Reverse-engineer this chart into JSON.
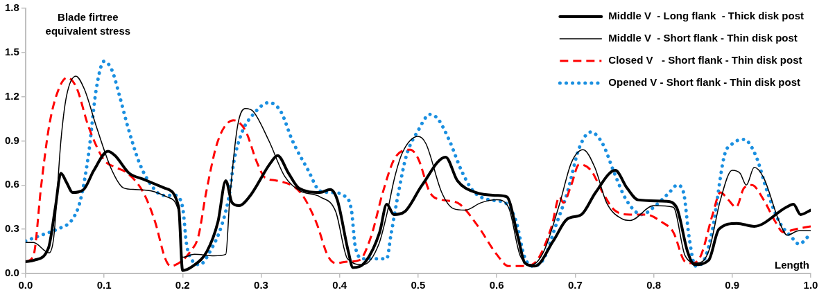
{
  "chart_data": {
    "type": "line",
    "ylabel": "Blade firtree equivalent stress",
    "xlabel": "Length",
    "xlim": [
      0,
      1
    ],
    "xticks": [
      {
        "value": 0,
        "label": "0.0"
      },
      {
        "value": 0.1,
        "label": "0.1"
      },
      {
        "value": 0.2,
        "label": "0.2"
      },
      {
        "value": 0.3,
        "label": "0.3"
      },
      {
        "value": 0.4,
        "label": "0.4"
      },
      {
        "value": 0.5,
        "label": "0.5"
      },
      {
        "value": 0.6,
        "label": "0.6"
      },
      {
        "value": 0.7,
        "label": "0.7"
      },
      {
        "value": 0.8,
        "label": "0.8"
      },
      {
        "value": 0.9,
        "label": "0.9"
      },
      {
        "value": 1,
        "label": "1.0"
      }
    ],
    "ylim": [
      0,
      1.8
    ],
    "yticks": [
      {
        "value": 0,
        "label": "0.0"
      },
      {
        "value": 0.3,
        "label": "0.3"
      },
      {
        "value": 0.6,
        "label": "0.6"
      },
      {
        "value": 0.9,
        "label": "0.9"
      },
      {
        "value": 1.2,
        "label": "1.2"
      },
      {
        "value": 1.5,
        "label": "1.5"
      },
      {
        "value": 1.8,
        "label": "1.8"
      }
    ],
    "grid": false,
    "legend": "top right",
    "marker": "none",
    "series": [
      {
        "name": "Middle V  - Long flank  - Thick disk post",
        "color": "#000000",
        "line_style": "solid",
        "x": [
          0,
          0.011,
          0.029,
          0.038,
          0.045,
          0.052,
          0.06,
          0.074,
          0.087,
          0.105,
          0.114,
          0.132,
          0.15,
          0.177,
          0.195,
          0.2,
          0.213,
          0.231,
          0.245,
          0.255,
          0.263,
          0.272,
          0.285,
          0.312,
          0.321,
          0.335,
          0.348,
          0.375,
          0.388,
          0.397,
          0.411,
          0.417,
          0.433,
          0.451,
          0.46,
          0.469,
          0.483,
          0.505,
          0.535,
          0.55,
          0.573,
          0.6,
          0.613,
          0.627,
          0.636,
          0.649,
          0.672,
          0.69,
          0.708,
          0.726,
          0.751,
          0.766,
          0.78,
          0.816,
          0.829,
          0.843,
          0.852,
          0.87,
          0.883,
          0.906,
          0.928,
          0.969,
          0.978,
          0.987,
          1
        ],
        "values": [
          0.08,
          0.09,
          0.17,
          0.45,
          0.68,
          0.62,
          0.55,
          0.57,
          0.7,
          0.83,
          0.8,
          0.68,
          0.64,
          0.58,
          0.45,
          0.02,
          0.05,
          0.15,
          0.35,
          0.63,
          0.48,
          0.46,
          0.52,
          0.75,
          0.8,
          0.68,
          0.58,
          0.55,
          0.57,
          0.5,
          0.15,
          0.04,
          0.08,
          0.28,
          0.47,
          0.4,
          0.42,
          0.6,
          0.79,
          0.63,
          0.55,
          0.53,
          0.52,
          0.25,
          0.07,
          0.05,
          0.22,
          0.37,
          0.4,
          0.55,
          0.7,
          0.58,
          0.5,
          0.49,
          0.45,
          0.15,
          0.06,
          0.09,
          0.3,
          0.34,
          0.32,
          0.45,
          0.47,
          0.4,
          0.43
        ]
      },
      {
        "name": "Middle V  - Short flank - Thin disk post",
        "color": "#000000",
        "line_style": "solid",
        "x": [
          0,
          0.01,
          0.03,
          0.036,
          0.045,
          0.052,
          0.064,
          0.075,
          0.09,
          0.11,
          0.125,
          0.14,
          0.16,
          0.18,
          0.195,
          0.2,
          0.215,
          0.24,
          0.255,
          0.26,
          0.27,
          0.28,
          0.29,
          0.31,
          0.33,
          0.35,
          0.375,
          0.395,
          0.41,
          0.43,
          0.45,
          0.46,
          0.47,
          0.48,
          0.5,
          0.51,
          0.53,
          0.545,
          0.56,
          0.58,
          0.6,
          0.615,
          0.63,
          0.645,
          0.66,
          0.68,
          0.695,
          0.71,
          0.725,
          0.74,
          0.76,
          0.77,
          0.8,
          0.825,
          0.84,
          0.855,
          0.87,
          0.885,
          0.9,
          0.91,
          0.918,
          0.928,
          0.94,
          0.96,
          0.97,
          0.985,
          1
        ],
        "values": [
          0.21,
          0.21,
          0.14,
          0.25,
          0.9,
          1.2,
          1.34,
          1.25,
          1.0,
          0.7,
          0.58,
          0.57,
          0.56,
          0.52,
          0.42,
          0.11,
          0.13,
          0.12,
          0.13,
          0.5,
          1.0,
          1.12,
          1.1,
          0.9,
          0.66,
          0.56,
          0.52,
          0.42,
          0.1,
          0.06,
          0.2,
          0.4,
          0.65,
          0.82,
          0.93,
          0.88,
          0.55,
          0.44,
          0.43,
          0.48,
          0.5,
          0.45,
          0.12,
          0.06,
          0.15,
          0.47,
          0.75,
          0.84,
          0.72,
          0.48,
          0.37,
          0.36,
          0.46,
          0.45,
          0.12,
          0.07,
          0.15,
          0.5,
          0.7,
          0.68,
          0.6,
          0.72,
          0.65,
          0.35,
          0.26,
          0.29,
          0.29
        ]
      },
      {
        "name": "Closed V   - Short flank - Thin disk post",
        "color": "#ff0000",
        "line_style": "dashed",
        "x": [
          0,
          0.01,
          0.02,
          0.03,
          0.04,
          0.053,
          0.065,
          0.08,
          0.1,
          0.115,
          0.13,
          0.15,
          0.165,
          0.178,
          0.185,
          0.2,
          0.21,
          0.22,
          0.23,
          0.245,
          0.265,
          0.28,
          0.295,
          0.305,
          0.32,
          0.35,
          0.37,
          0.385,
          0.395,
          0.41,
          0.425,
          0.44,
          0.455,
          0.47,
          0.49,
          0.5,
          0.515,
          0.53,
          0.55,
          0.575,
          0.6,
          0.615,
          0.635,
          0.65,
          0.67,
          0.68,
          0.685,
          0.695,
          0.705,
          0.72,
          0.735,
          0.75,
          0.77,
          0.79,
          0.81,
          0.825,
          0.84,
          0.85,
          0.86,
          0.875,
          0.885,
          0.895,
          0.905,
          0.915,
          0.925,
          0.94,
          0.955,
          0.965,
          0.98,
          1
        ],
        "values": [
          0.08,
          0.12,
          0.6,
          1.0,
          1.22,
          1.33,
          1.26,
          1.0,
          0.77,
          0.72,
          0.68,
          0.55,
          0.35,
          0.1,
          0.05,
          0.09,
          0.15,
          0.25,
          0.55,
          0.9,
          1.04,
          0.97,
          0.75,
          0.65,
          0.63,
          0.55,
          0.35,
          0.12,
          0.07,
          0.08,
          0.09,
          0.25,
          0.55,
          0.78,
          0.84,
          0.78,
          0.55,
          0.5,
          0.48,
          0.33,
          0.13,
          0.05,
          0.05,
          0.08,
          0.32,
          0.52,
          0.48,
          0.6,
          0.74,
          0.7,
          0.55,
          0.43,
          0.4,
          0.4,
          0.35,
          0.28,
          0.08,
          0.07,
          0.12,
          0.4,
          0.55,
          0.5,
          0.45,
          0.58,
          0.6,
          0.5,
          0.35,
          0.28,
          0.3,
          0.32
        ]
      },
      {
        "name": "Opened V - Short flank - Thin disk post",
        "color": "#1a8fe0",
        "line_style": "dotted",
        "x": [
          0,
          0.02,
          0.04,
          0.06,
          0.07,
          0.08,
          0.09,
          0.1,
          0.11,
          0.12,
          0.13,
          0.145,
          0.16,
          0.175,
          0.19,
          0.2,
          0.205,
          0.212,
          0.222,
          0.235,
          0.25,
          0.26,
          0.265,
          0.275,
          0.29,
          0.31,
          0.325,
          0.34,
          0.36,
          0.375,
          0.39,
          0.405,
          0.415,
          0.42,
          0.43,
          0.45,
          0.46,
          0.465,
          0.475,
          0.485,
          0.5,
          0.515,
          0.525,
          0.54,
          0.555,
          0.57,
          0.59,
          0.605,
          0.615,
          0.625,
          0.635,
          0.645,
          0.66,
          0.675,
          0.69,
          0.705,
          0.72,
          0.735,
          0.75,
          0.765,
          0.785,
          0.8,
          0.82,
          0.83,
          0.838,
          0.845,
          0.853,
          0.865,
          0.875,
          0.89,
          0.9,
          0.915,
          0.93,
          0.945,
          0.96,
          0.975,
          0.985,
          1
        ],
        "values": [
          0.22,
          0.26,
          0.3,
          0.37,
          0.5,
          0.8,
          1.25,
          1.44,
          1.38,
          1.2,
          1.0,
          0.75,
          0.6,
          0.53,
          0.53,
          0.45,
          0.2,
          0.09,
          0.06,
          0.15,
          0.33,
          0.55,
          0.75,
          0.95,
          1.08,
          1.16,
          1.1,
          0.9,
          0.7,
          0.56,
          0.55,
          0.53,
          0.43,
          0.18,
          0.1,
          0.1,
          0.1,
          0.25,
          0.55,
          0.8,
          0.97,
          1.08,
          1.05,
          0.9,
          0.7,
          0.56,
          0.5,
          0.49,
          0.46,
          0.35,
          0.12,
          0.05,
          0.1,
          0.32,
          0.55,
          0.85,
          0.96,
          0.88,
          0.68,
          0.5,
          0.4,
          0.45,
          0.55,
          0.6,
          0.55,
          0.25,
          0.05,
          0.1,
          0.3,
          0.8,
          0.88,
          0.91,
          0.8,
          0.55,
          0.35,
          0.25,
          0.2,
          0.27
        ]
      }
    ]
  }
}
